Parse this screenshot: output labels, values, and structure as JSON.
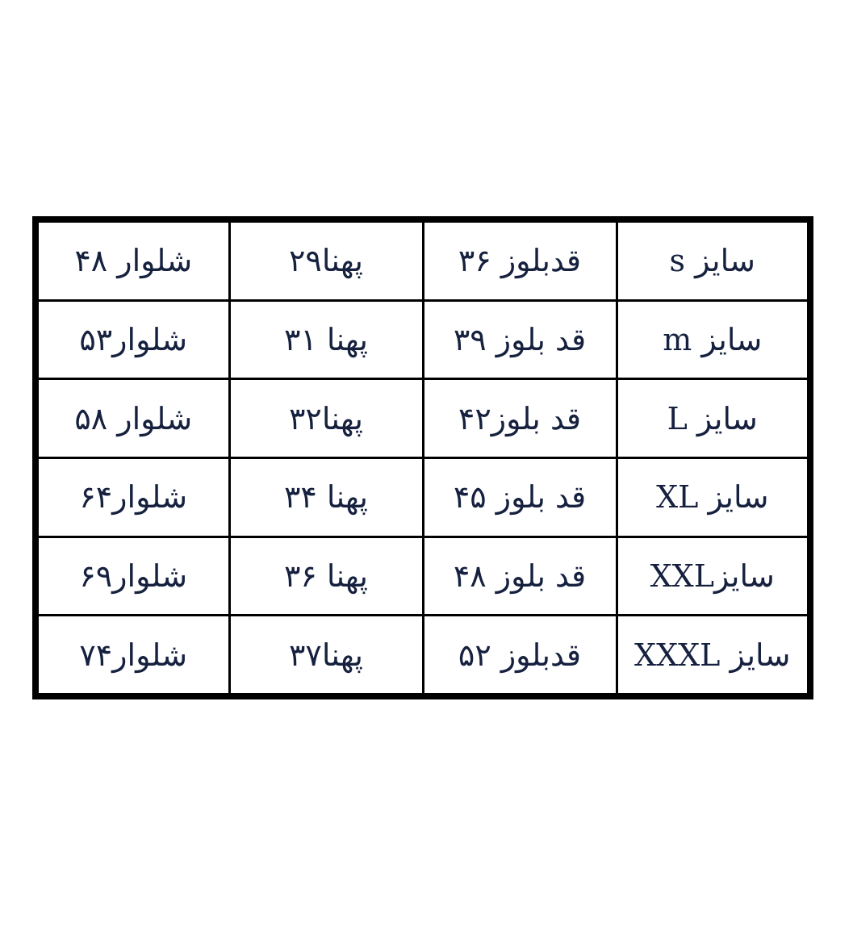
{
  "table": {
    "rows": [
      [
        "سایز s",
        "قدبلوز ۳۶",
        "پهنا۲۹",
        "شلوار ۴۸"
      ],
      [
        "سایز m",
        "قد بلوز ۳۹",
        "پهنا ۳۱",
        "شلوار۵۳"
      ],
      [
        "سایز L",
        "قد بلوز۴۲",
        "پهنا۳۲",
        "شلوار ۵۸"
      ],
      [
        "سایز XL",
        "قد بلوز ۴۵",
        "پهنا ۳۴",
        "شلوار۶۴"
      ],
      [
        "سایزXXL",
        "قد بلوز ۴۸",
        "پهنا ۳۶",
        "شلوار۶۹"
      ],
      [
        "سایز XXXL",
        "قدبلوز ۵۲",
        "پهنا۳۷",
        "شلوار۷۴"
      ]
    ],
    "text_color": "#16213f",
    "border_color": "#000000"
  }
}
